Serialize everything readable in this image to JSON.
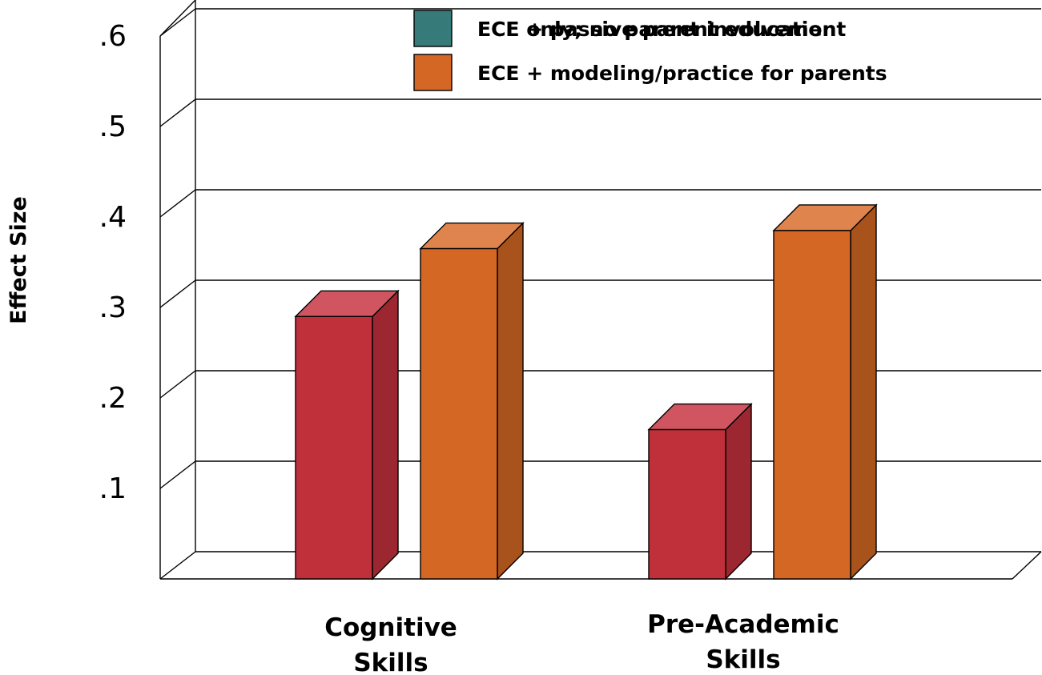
{
  "chart_data": {
    "type": "bar",
    "title": "",
    "ylabel": "Effect Size",
    "xlabel": "",
    "ylim": [
      0,
      0.6
    ],
    "yticks": [
      {
        "value": 0.1,
        "label": ".1"
      },
      {
        "value": 0.2,
        "label": ".2"
      },
      {
        "value": 0.3,
        "label": ".3"
      },
      {
        "value": 0.4,
        "label": ".4"
      },
      {
        "value": 0.5,
        "label": ".5"
      },
      {
        "value": 0.6,
        "label": ".6"
      }
    ],
    "categories": [
      [
        "Cognitive",
        "Skills"
      ],
      [
        "Pre-Academic",
        "Skills"
      ]
    ],
    "grid": true,
    "three_d": true,
    "legend_position": "top-right",
    "legend": [
      {
        "label": "ECE only; no parent involvement",
        "color": "#367a79",
        "overprint": "ECE + passive parent education"
      },
      {
        "label": "ECE + modeling/practice for parents",
        "color": "#d46723"
      }
    ],
    "series": [
      {
        "values": [
          0.29,
          0.165
        ],
        "color": "#c0303a",
        "top_color": "#d05560",
        "side_color": "#9c2730"
      },
      {
        "values": [
          0.365,
          0.385
        ],
        "color": "#d46723",
        "top_color": "#e0844e",
        "side_color": "#a8521c"
      }
    ]
  }
}
